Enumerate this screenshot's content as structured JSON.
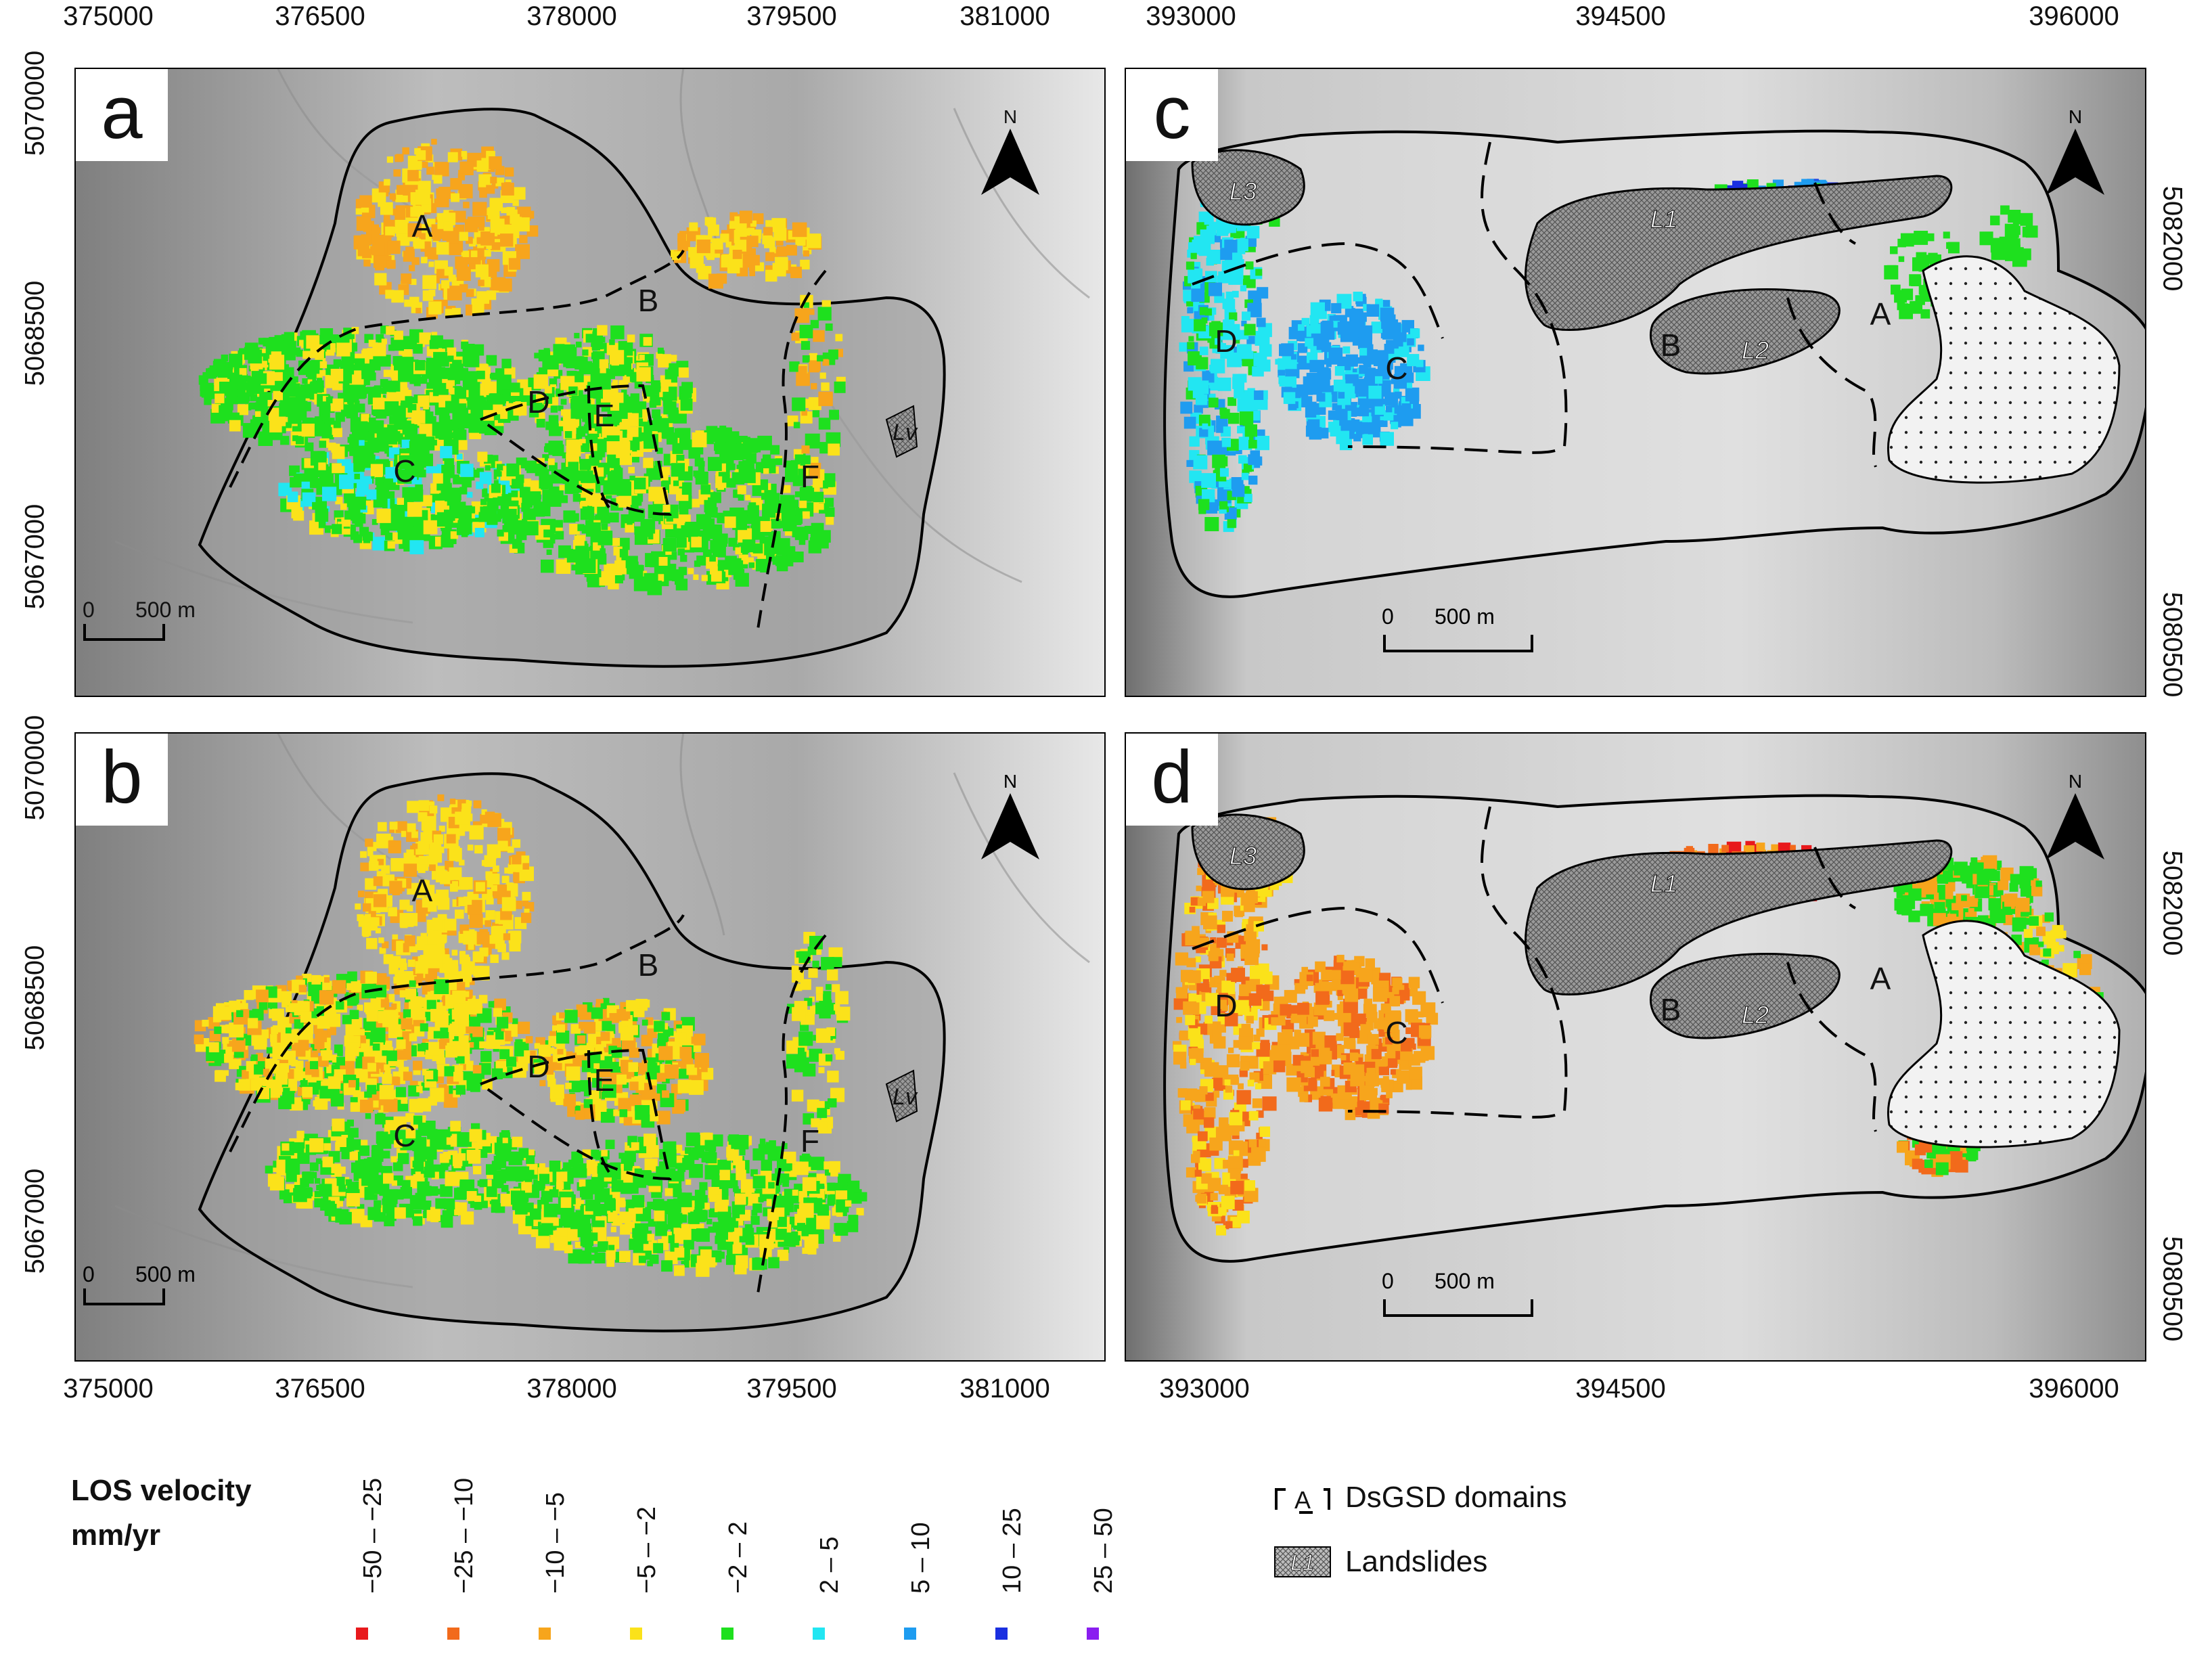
{
  "panels": [
    {
      "label": "a",
      "x_ticks": [
        "375000",
        "376500",
        "378000",
        "379500",
        "381000"
      ],
      "y_ticks": [
        "5070000",
        "5068500",
        "5067000"
      ],
      "domains": [
        "A",
        "B",
        "C",
        "D",
        "E",
        "F"
      ],
      "landslides": [
        "Lv"
      ],
      "scale": {
        "zero": "0",
        "length": "500 m"
      },
      "north": "N"
    },
    {
      "label": "b",
      "x_ticks": [
        "375000",
        "376500",
        "378000",
        "379500",
        "381000"
      ],
      "y_ticks": [
        "5070000",
        "5068500",
        "5067000"
      ],
      "domains": [
        "A",
        "B",
        "C",
        "D",
        "E",
        "F"
      ],
      "landslides": [
        "Lv"
      ],
      "scale": {
        "zero": "0",
        "length": "500 m"
      },
      "north": "N"
    },
    {
      "label": "c",
      "x_ticks": [
        "393000",
        "394500",
        "396000"
      ],
      "y_ticks": [
        "5082000",
        "5080500"
      ],
      "domains": [
        "A",
        "B",
        "C",
        "D"
      ],
      "landslides": [
        "L1",
        "L2",
        "L3"
      ],
      "scale": {
        "zero": "0",
        "length": "500 m"
      },
      "north": "N"
    },
    {
      "label": "d",
      "x_ticks": [
        "393000",
        "394500",
        "396000"
      ],
      "y_ticks": [
        "5082000",
        "5080500"
      ],
      "domains": [
        "A",
        "B",
        "C",
        "D"
      ],
      "landslides": [
        "L1",
        "L2",
        "L3"
      ],
      "scale": {
        "zero": "0",
        "length": "500 m"
      },
      "north": "N"
    }
  ],
  "legend": {
    "title_line1": "LOS velocity",
    "title_line2": "mm/yr",
    "classes": [
      {
        "label": "−50 – −25",
        "color": "#e8191c"
      },
      {
        "label": "−25 – −10",
        "color": "#f26a1b"
      },
      {
        "label": "−10 – −5",
        "color": "#f7a51c"
      },
      {
        "label": "−5 – −2",
        "color": "#fbe21a"
      },
      {
        "label": "−2 – 2",
        "color": "#1ee01e"
      },
      {
        "label": "2 – 5",
        "color": "#22e6f2"
      },
      {
        "label": "5 – 10",
        "color": "#1e9cf0"
      },
      {
        "label": "10 – 25",
        "color": "#1a2fe0"
      },
      {
        "label": "25 – 50",
        "color": "#8a1ef0"
      }
    ],
    "domains_symbol": "A",
    "domains_label": "DsGSD domains",
    "landslides_symbol": "L1",
    "landslides_label": "Landslides"
  }
}
